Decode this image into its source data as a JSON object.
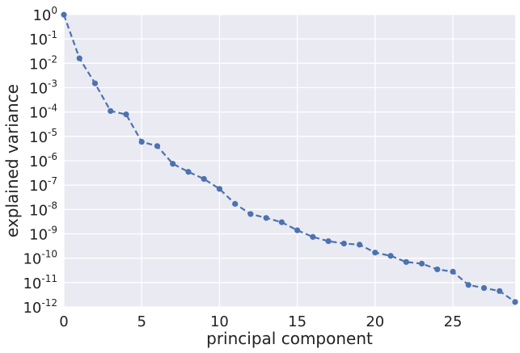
{
  "chart_data": {
    "type": "line",
    "title": "",
    "xlabel": "principal component",
    "ylabel": "explained variance",
    "xlim": [
      0,
      29
    ],
    "ylim": [
      1e-12,
      1
    ],
    "yscale": "log",
    "grid": true,
    "x_ticks": [
      {
        "value": 0,
        "label": "0"
      },
      {
        "value": 5,
        "label": "5"
      },
      {
        "value": 10,
        "label": "10"
      },
      {
        "value": 15,
        "label": "15"
      },
      {
        "value": 20,
        "label": "20"
      },
      {
        "value": 25,
        "label": "25"
      }
    ],
    "y_ticks": [
      {
        "value": 1,
        "base": "10",
        "exp": "0"
      },
      {
        "value": 0.1,
        "base": "10",
        "exp": "-1"
      },
      {
        "value": 0.01,
        "base": "10",
        "exp": "-2"
      },
      {
        "value": 0.001,
        "base": "10",
        "exp": "-3"
      },
      {
        "value": 0.0001,
        "base": "10",
        "exp": "-4"
      },
      {
        "value": 1e-05,
        "base": "10",
        "exp": "-5"
      },
      {
        "value": 1e-06,
        "base": "10",
        "exp": "-6"
      },
      {
        "value": 1e-07,
        "base": "10",
        "exp": "-7"
      },
      {
        "value": 1e-08,
        "base": "10",
        "exp": "-8"
      },
      {
        "value": 1e-09,
        "base": "10",
        "exp": "-9"
      },
      {
        "value": 1e-10,
        "base": "10",
        "exp": "-10"
      },
      {
        "value": 1e-11,
        "base": "10",
        "exp": "-11"
      },
      {
        "value": 1e-12,
        "base": "10",
        "exp": "-12"
      }
    ],
    "series": [
      {
        "x": [
          0,
          1,
          2,
          3,
          4,
          5,
          6,
          7,
          8,
          9,
          10,
          11,
          12,
          13,
          14,
          15,
          16,
          17,
          18,
          19,
          20,
          21,
          22,
          23,
          24,
          25,
          26,
          27,
          28,
          29
        ],
        "values": [
          0.98,
          0.016,
          0.0015,
          0.00011,
          8e-05,
          6e-06,
          4e-06,
          7.5e-07,
          3.5e-07,
          1.8e-07,
          7e-08,
          1.7e-08,
          6.5e-09,
          4.5e-09,
          3e-09,
          1.4e-09,
          7.5e-10,
          5e-10,
          4e-10,
          3.6e-10,
          1.7e-10,
          1.25e-10,
          7e-11,
          6e-11,
          3.5e-11,
          2.8e-11,
          8e-12,
          6e-12,
          4.5e-12,
          1.6e-12
        ]
      }
    ],
    "colors": {
      "plot_background": "#eaeaf2",
      "grid": "#ffffff",
      "series": "#4c72b0",
      "text": "#222222"
    }
  }
}
